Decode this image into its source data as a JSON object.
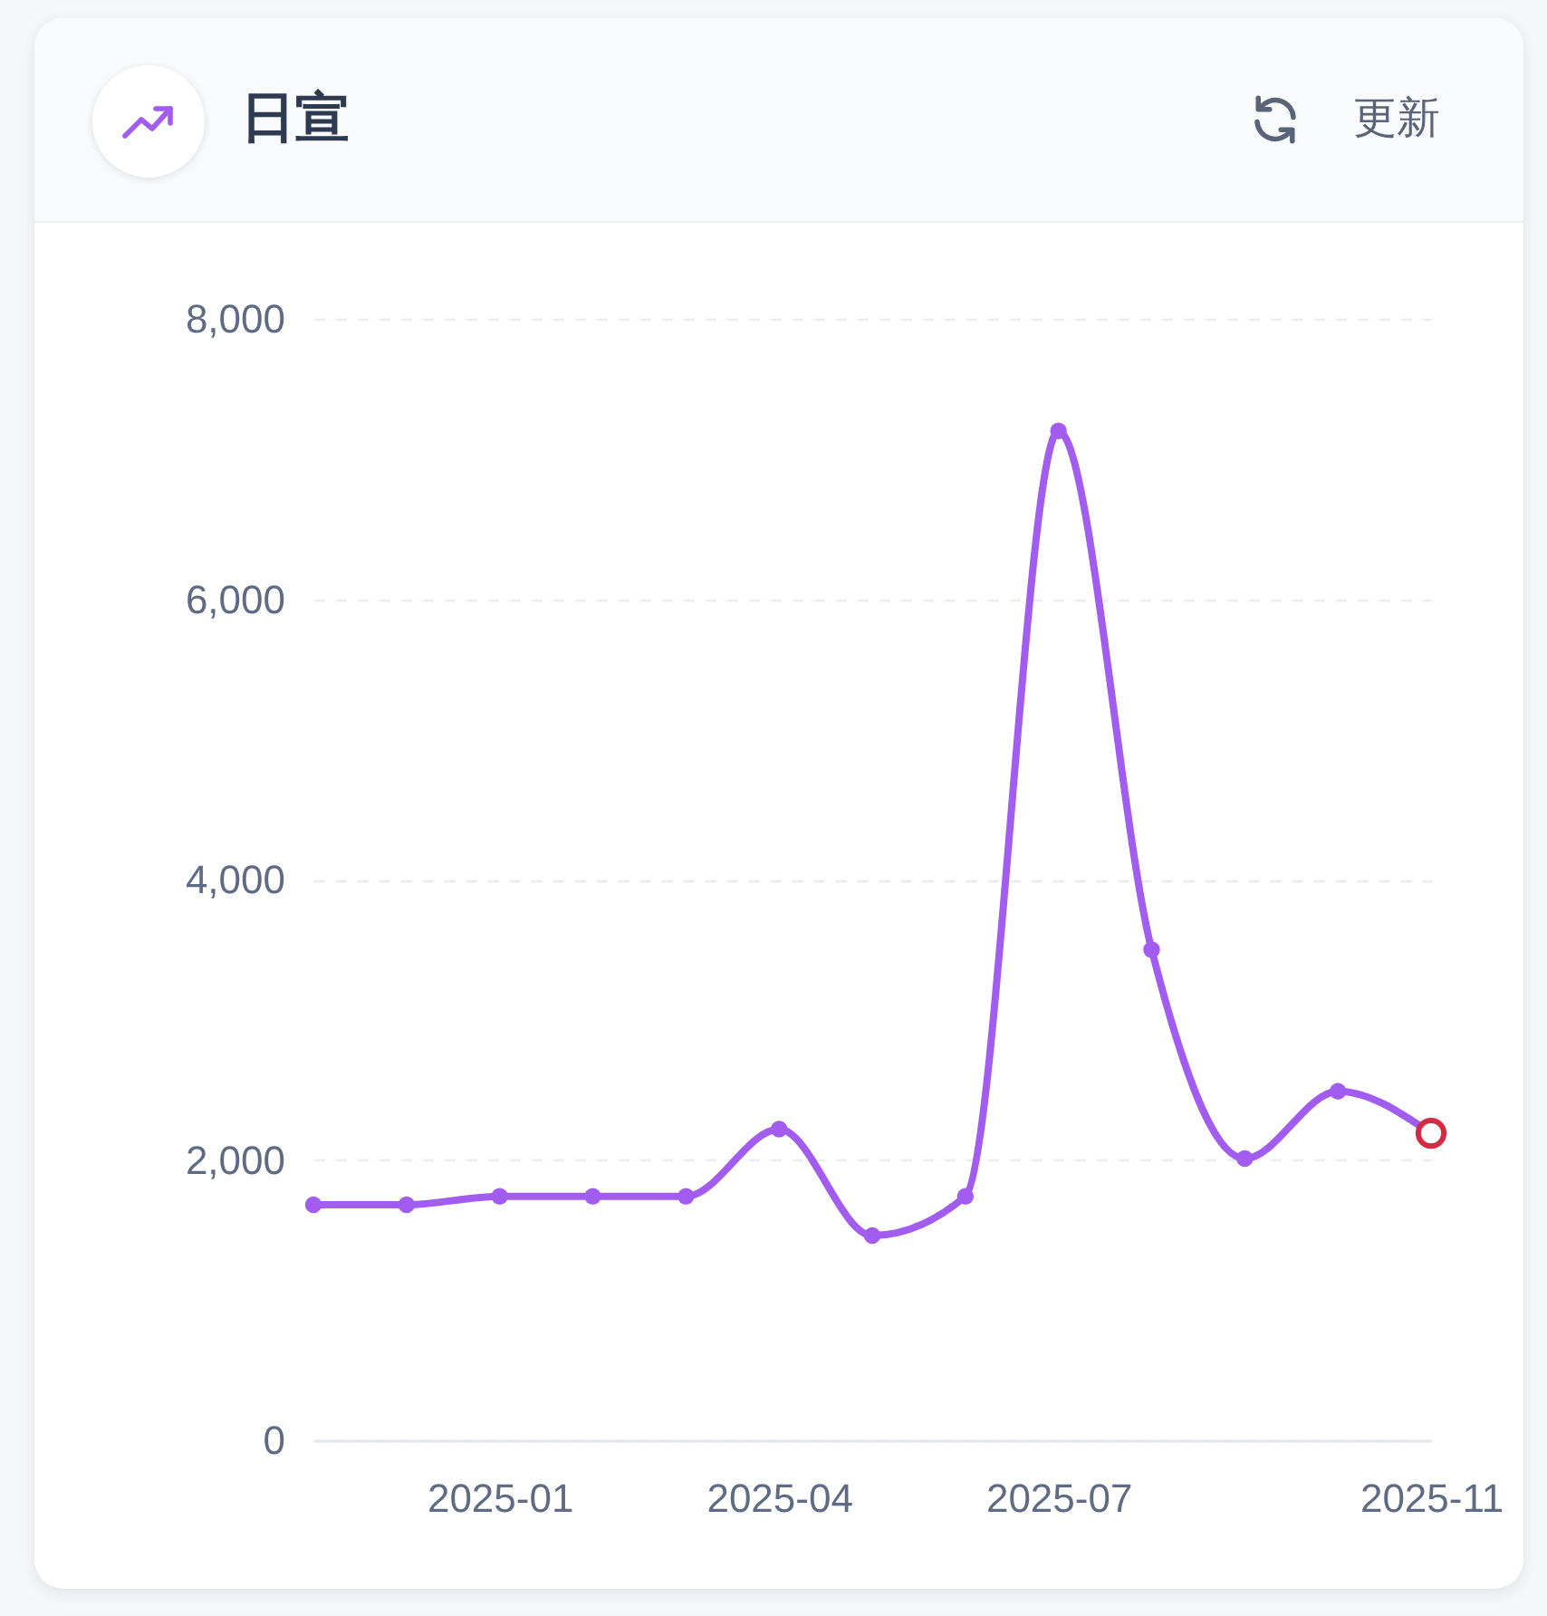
{
  "chart_data": {
    "type": "line",
    "title": "日宣",
    "annotations": [
      "更新"
    ],
    "categories": [
      null,
      null,
      "2025-01",
      null,
      null,
      "2025-04",
      null,
      null,
      "2025-07",
      null,
      null,
      null,
      "2025-11"
    ],
    "series": [
      {
        "color": "#a25cf0",
        "values": [
          1680,
          1680,
          1740,
          1740,
          1740,
          2220,
          1460,
          1740,
          7200,
          3500,
          2010,
          2490,
          2190
        ]
      },
      {
        "type": "scatter",
        "color": "#d22c44",
        "values": [
          null,
          null,
          null,
          null,
          null,
          null,
          null,
          null,
          null,
          null,
          null,
          null,
          2190
        ]
      }
    ],
    "ylim": [
      0,
      8000
    ],
    "yticks": [
      0,
      {
        "value": 2000,
        "label": "2,000"
      },
      {
        "value": 4000,
        "label": "4,000"
      },
      {
        "value": 6000,
        "label": "6,000"
      },
      {
        "value": 8000,
        "label": "8,000"
      }
    ],
    "grid": "y",
    "marker": "circle"
  }
}
